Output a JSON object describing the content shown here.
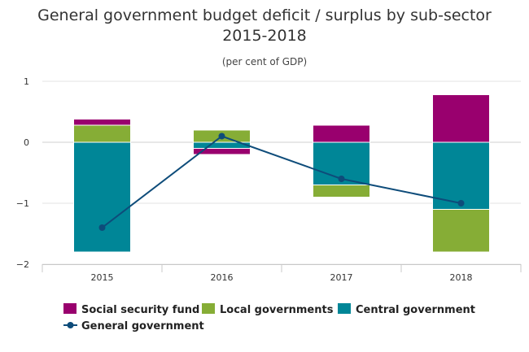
{
  "chart_data": {
    "type": "bar",
    "title_line1": "General government budget deficit / surplus by sub-sector",
    "title_line2": "2015-2018",
    "subtitle": "(per cent of GDP)",
    "categories": [
      "2015",
      "2016",
      "2017",
      "2018"
    ],
    "y_ticks": [
      "1",
      "0",
      "−1",
      "−2"
    ],
    "ylim": [
      -2,
      1
    ],
    "stacked": true,
    "grid": true,
    "legend_position": "bottom",
    "series": [
      {
        "name": "Social security fund",
        "color": "#99006e",
        "values": [
          0.1,
          -0.1,
          0.28,
          0.78
        ]
      },
      {
        "name": "Local governments",
        "color": "#86ad36",
        "values": [
          0.28,
          0.2,
          -0.2,
          -0.7
        ]
      },
      {
        "name": "Central government",
        "color": "#008697",
        "values": [
          -1.8,
          -0.1,
          -0.7,
          -1.1
        ]
      }
    ],
    "line_series": {
      "name": "General government",
      "color": "#0e4c7a",
      "values": [
        -1.4,
        0.1,
        -0.6,
        -1.0
      ]
    }
  }
}
